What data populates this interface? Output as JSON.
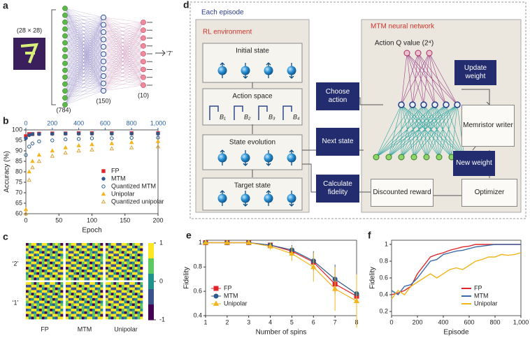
{
  "panels": {
    "a": {
      "label": "a",
      "input_size": "(28 × 28)",
      "layers": [
        "(784)",
        "(150)",
        "(10)"
      ],
      "output": "‘7’"
    },
    "b": {
      "label": "b",
      "chart_data": {
        "type": "scatter",
        "xlabel": "Epoch",
        "ylabel": "Accuracy (%)",
        "xlim": [
          0,
          200
        ],
        "xticks": [
          0,
          50,
          100,
          150,
          200
        ],
        "ylim": [
          60,
          100
        ],
        "yticks": [
          60,
          65,
          70,
          75,
          80,
          85,
          90,
          95,
          100
        ],
        "x2lim": [
          0,
          1000
        ],
        "x2ticks": [
          0,
          200,
          400,
          600,
          800,
          {
            "value": 1000,
            "label": "1,000"
          }
        ],
        "x2color": "#2b5fa8",
        "legend": "lower right",
        "series": [
          {
            "name": "FP",
            "color": "#e0262b",
            "marker": "square",
            "filled": true,
            "x": [
              0,
              5,
              10,
              20,
              40,
              60,
              80,
              100,
              130,
              160,
              200
            ],
            "values": [
              97,
              98,
              98,
              98.2,
              98.3,
              98.3,
              98.4,
              98.4,
              98.4,
              98.4,
              98.4
            ]
          },
          {
            "name": "MTM",
            "color": "#2d5a8c",
            "marker": "circle",
            "filled": true,
            "x": [
              0,
              5,
              10,
              20,
              40,
              60,
              80,
              100,
              130,
              160,
              200
            ],
            "values": [
              96,
              97.5,
              98,
              98,
              98.1,
              98.2,
              98.2,
              98.2,
              98.2,
              98.2,
              98.2
            ]
          },
          {
            "name": "Quantized MTM",
            "color": "#2d5a8c",
            "marker": "circle",
            "filled": false,
            "x": [
              0,
              5,
              10,
              20,
              40,
              60,
              80,
              100,
              130,
              160,
              200
            ],
            "values": [
              88,
              92,
              93.5,
              94.5,
              95,
              95.5,
              95.7,
              96,
              96,
              96.2,
              96.3
            ]
          },
          {
            "name": "Unipolar",
            "color": "#f2b51c",
            "marker": "triangle",
            "filled": true,
            "x": [
              0,
              5,
              10,
              20,
              40,
              60,
              80,
              100,
              130,
              160,
              200
            ],
            "values": [
              62,
              80,
              85,
              88,
              90,
              91.5,
              92.5,
              93,
              93.5,
              94,
              94.5
            ]
          },
          {
            "name": "Quantized unipolar",
            "color": "#d9a640",
            "marker": "triangle",
            "filled": false,
            "x": [
              0,
              5,
              10,
              20,
              40,
              60,
              80,
              100,
              130,
              160,
              200
            ],
            "values": [
              60,
              76,
              82,
              85,
              87.5,
              89,
              90,
              90.5,
              91,
              91.5,
              92
            ]
          }
        ]
      }
    },
    "c": {
      "label": "c",
      "rows": [
        "‘2’",
        "‘1’"
      ],
      "columns": [
        "FP",
        "MTM",
        "Unipolar"
      ],
      "colorbar_ticks": [
        1,
        0,
        -1
      ]
    },
    "d": {
      "label": "d",
      "episode": "Each episode",
      "rl_environment": "RL environment",
      "network": "MTM neural network",
      "states": [
        "Initial state",
        "Action space",
        "State evolution",
        "Target state"
      ],
      "actions": [
        "B₁",
        "B₂",
        "B₃",
        "B₄"
      ],
      "q_value": "Action Q value (2⁴)",
      "choose_action": "Choose action",
      "next_state": "Next state",
      "calculate_fidelity": "Calculate fidelity",
      "update_weight": "Update weight",
      "memristor_writer": "Memristor writer",
      "new_weight": "New weight",
      "discounted_reward": "Discounted reward",
      "optimizer": "Optimizer"
    },
    "e": {
      "label": "e",
      "chart_data": {
        "type": "line",
        "xlabel": "Number of spins",
        "ylabel": "Fidelity",
        "xlim": [
          1,
          8
        ],
        "xticks": [
          1,
          2,
          3,
          4,
          5,
          6,
          7,
          8
        ],
        "ylim": [
          0.4,
          1.02
        ],
        "yticks": [
          0.4,
          0.6,
          0.8,
          1
        ],
        "legend": "lower left",
        "series": [
          {
            "name": "FP",
            "color": "#e0262b",
            "marker": "square",
            "filled": true,
            "x": [
              1,
              2,
              3,
              4,
              5,
              6,
              7,
              8
            ],
            "values": [
              1,
              1,
              1,
              0.98,
              0.93,
              0.84,
              0.66,
              0.56
            ]
          },
          {
            "name": "MTM",
            "color": "#2d5a8c",
            "marker": "circle",
            "filled": true,
            "x": [
              1,
              2,
              3,
              4,
              5,
              6,
              7,
              8
            ],
            "values": [
              1,
              1,
              1,
              0.98,
              0.94,
              0.85,
              0.7,
              0.58
            ],
            "errors": [
              0,
              0,
              0,
              0.02,
              0.04,
              0.08,
              0.12,
              0.16
            ]
          },
          {
            "name": "Unipolar",
            "color": "#f2b51c",
            "marker": "triangle",
            "filled": true,
            "x": [
              1,
              2,
              3,
              4,
              5,
              6,
              7,
              8
            ],
            "values": [
              1,
              1,
              1,
              0.97,
              0.91,
              0.8,
              0.62,
              0.52
            ],
            "errors": [
              0,
              0,
              0,
              0.03,
              0.06,
              0.12,
              0.18,
              0.22
            ]
          }
        ]
      }
    },
    "f": {
      "label": "f",
      "chart_data": {
        "type": "line",
        "xlabel": "Episode",
        "ylabel": "Fidelity",
        "xlim": [
          0,
          1000
        ],
        "xticks": [
          0,
          200,
          400,
          600,
          800,
          {
            "value": 1000,
            "label": "1,000"
          }
        ],
        "ylim": [
          0.15,
          1.05
        ],
        "yticks": [
          0.2,
          0.4,
          0.6,
          0.8,
          1
        ],
        "legend": "lower right",
        "series": [
          {
            "name": "FP",
            "color": "#e0262b",
            "x": [
              0,
              50,
              100,
              150,
              200,
              250,
              300,
              350,
              400,
              450,
              500,
              550,
              600,
              650,
              700,
              750,
              800,
              850,
              900,
              950,
              1000
            ],
            "values": [
              0.4,
              0.42,
              0.45,
              0.5,
              0.65,
              0.75,
              0.85,
              0.88,
              0.9,
              0.93,
              0.95,
              0.97,
              0.98,
              1,
              1,
              1,
              1,
              1,
              1,
              1,
              1
            ]
          },
          {
            "name": "MTM",
            "color": "#3b6aa8",
            "x": [
              0,
              50,
              100,
              150,
              200,
              250,
              300,
              350,
              400,
              450,
              500,
              550,
              600,
              650,
              700,
              750,
              800,
              850,
              900,
              950,
              1000
            ],
            "values": [
              0.45,
              0.4,
              0.5,
              0.52,
              0.6,
              0.7,
              0.8,
              0.82,
              0.88,
              0.9,
              0.92,
              0.93,
              0.95,
              0.97,
              0.98,
              0.99,
              1,
              1,
              1,
              1,
              1
            ]
          },
          {
            "name": "Unipolar",
            "color": "#f2b51c",
            "x": [
              0,
              50,
              100,
              150,
              200,
              250,
              300,
              350,
              400,
              450,
              500,
              550,
              600,
              650,
              700,
              750,
              800,
              850,
              900,
              950,
              1000
            ],
            "values": [
              0.35,
              0.45,
              0.4,
              0.5,
              0.55,
              0.6,
              0.65,
              0.6,
              0.65,
              0.7,
              0.72,
              0.7,
              0.75,
              0.8,
              0.82,
              0.85,
              0.85,
              0.88,
              0.87,
              0.88,
              0.9
            ]
          }
        ]
      }
    }
  }
}
